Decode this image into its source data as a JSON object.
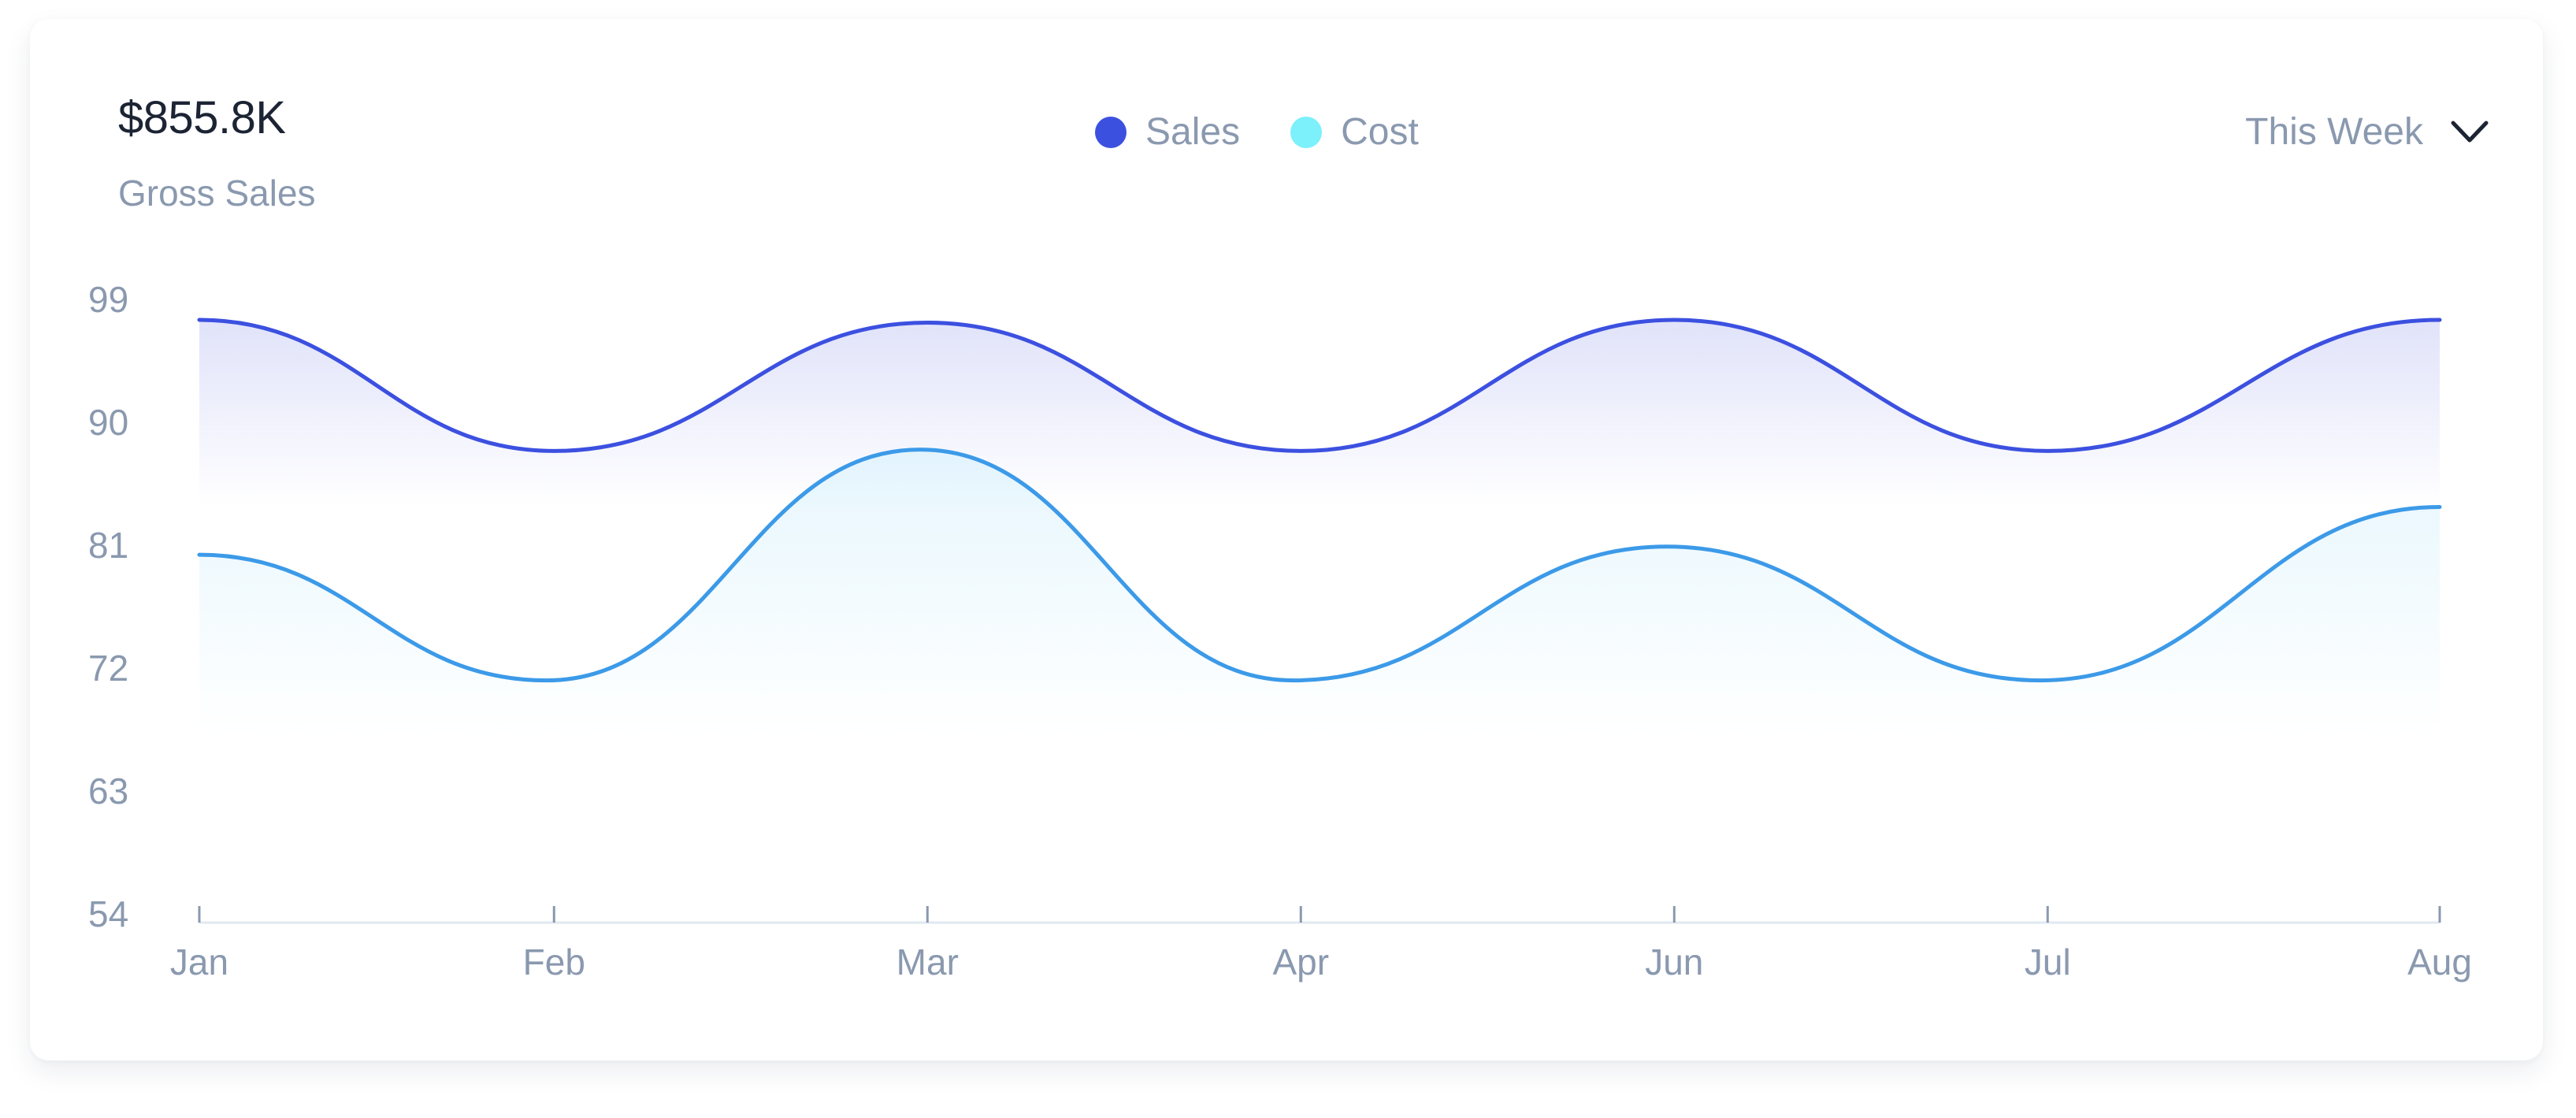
{
  "header": {
    "total_value": "$855.8K",
    "subtitle": "Gross Sales",
    "period_label": "This Week"
  },
  "legend": [
    {
      "name": "Sales",
      "color": "#3c50e0"
    },
    {
      "name": "Cost",
      "color": "#80caee"
    }
  ],
  "icons": {
    "period_dropdown": "chevron-down-icon"
  },
  "chart_data": {
    "type": "area",
    "categories": [
      "Jan",
      "Feb",
      "Mar",
      "Apr",
      "Jun",
      "Jul",
      "Aug"
    ],
    "ylim": [
      54,
      99
    ],
    "yticks": [
      99,
      90,
      81,
      72,
      63,
      54
    ],
    "grid": false,
    "legend_position": "top-center",
    "series": [
      {
        "name": "Sales",
        "color": "#3c50e0",
        "fill_color": "#c7cbf5",
        "points": [
          [
            0,
            97.5
          ],
          [
            0.95,
            87.9
          ],
          [
            1.95,
            97.3
          ],
          [
            2.95,
            87.9
          ],
          [
            3.95,
            97.5
          ],
          [
            4.95,
            87.9
          ],
          [
            6,
            97.5
          ]
        ]
      },
      {
        "name": "Cost",
        "color": "#3c9ae8",
        "fill_color": "#d6f1fd",
        "points": [
          [
            0,
            80.3
          ],
          [
            0.93,
            71.1
          ],
          [
            1.93,
            88.0
          ],
          [
            2.93,
            71.1
          ],
          [
            3.93,
            80.9
          ],
          [
            4.93,
            71.1
          ],
          [
            6,
            83.8
          ]
        ]
      }
    ]
  }
}
